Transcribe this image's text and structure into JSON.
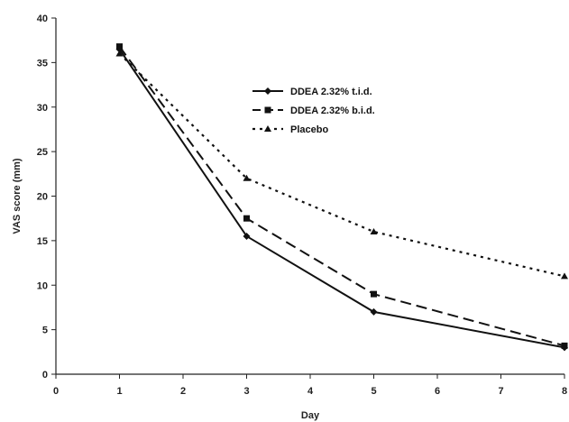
{
  "chart_data": {
    "type": "line",
    "title": "",
    "xlabel": "Day",
    "ylabel": "VAS score (mm)",
    "xlim": [
      0,
      8
    ],
    "ylim": [
      0,
      40
    ],
    "xticks": [
      0,
      1,
      2,
      3,
      4,
      5,
      6,
      7,
      8
    ],
    "yticks": [
      0,
      5,
      10,
      15,
      20,
      25,
      30,
      35,
      40
    ],
    "grid": false,
    "legend_position": "top-right",
    "series": [
      {
        "name": "DDEA 2.32% t.i.d.",
        "style": "solid",
        "marker": "diamond",
        "color": "#111111",
        "x": [
          1,
          3,
          5,
          8
        ],
        "y": [
          36.5,
          15.5,
          7.0,
          3.0
        ]
      },
      {
        "name": "DDEA 2.32% b.i.d.",
        "style": "dashed",
        "marker": "square",
        "color": "#111111",
        "x": [
          1,
          3,
          5,
          8
        ],
        "y": [
          36.8,
          17.5,
          9.0,
          3.2
        ]
      },
      {
        "name": "Placebo",
        "style": "dotted",
        "marker": "triangle",
        "color": "#111111",
        "x": [
          1,
          3,
          5,
          8
        ],
        "y": [
          36.0,
          22.0,
          16.0,
          11.0
        ]
      }
    ]
  }
}
